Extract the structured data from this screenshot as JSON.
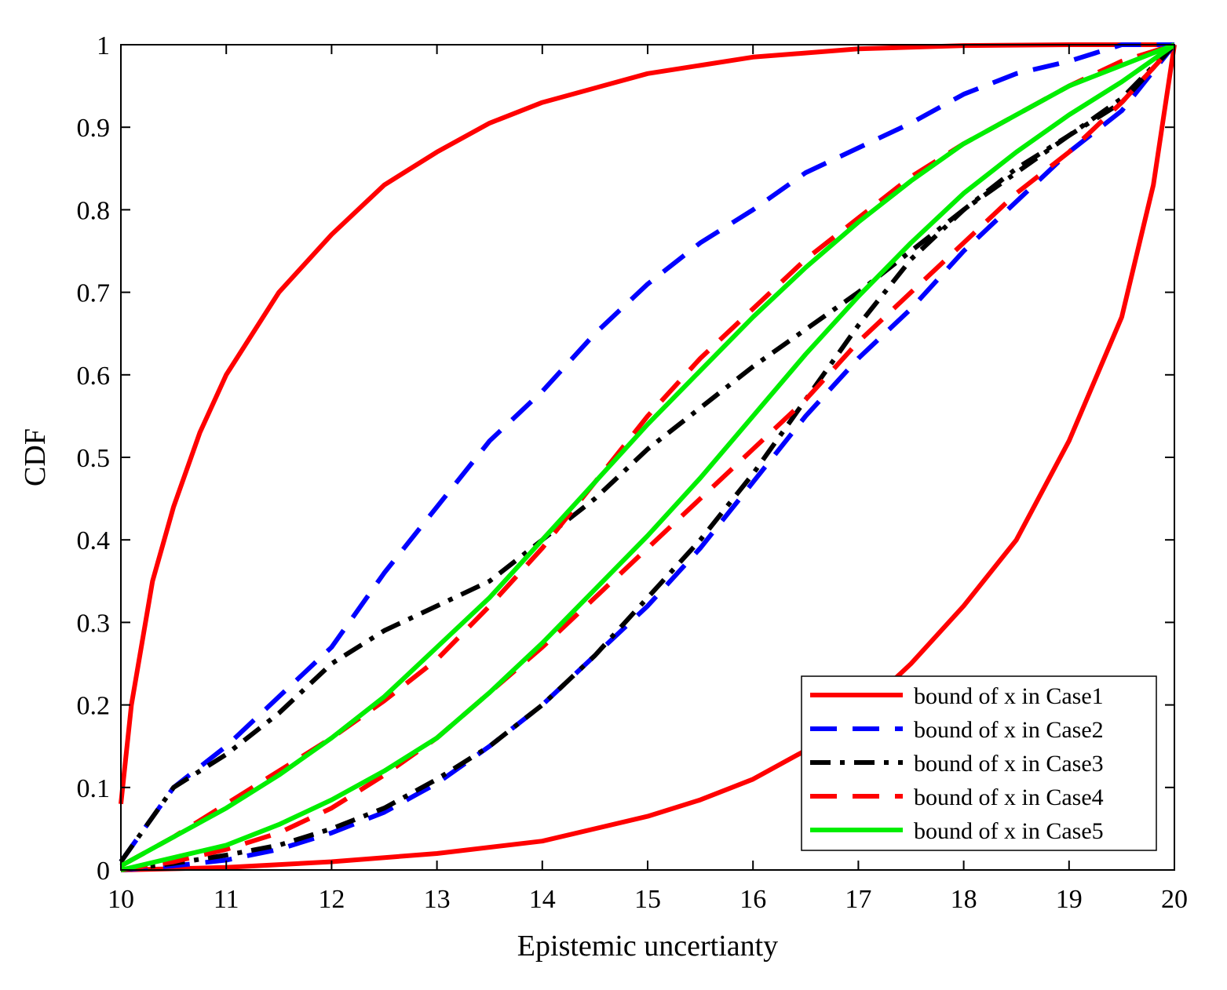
{
  "chart_data": {
    "type": "line",
    "title": "",
    "xlabel": "Epistemic uncertianty",
    "ylabel": "CDF",
    "xlim": [
      10,
      20
    ],
    "ylim": [
      0,
      1
    ],
    "xticks": [
      10,
      11,
      12,
      13,
      14,
      15,
      16,
      17,
      18,
      19,
      20
    ],
    "yticks": [
      0,
      0.1,
      0.2,
      0.3,
      0.4,
      0.5,
      0.6,
      0.7,
      0.8,
      0.9,
      1
    ],
    "ytick_labels": [
      "0",
      "0.1",
      "0.2",
      "0.3",
      "0.4",
      "0.5",
      "0.6",
      "0.7",
      "0.8",
      "0.9",
      "1"
    ],
    "grid": false,
    "legend_position": "bottom-right",
    "series": [
      {
        "name": "bound of x in Case1",
        "color": "#ff0000",
        "style": "solid",
        "curves": [
          {
            "x": [
              10,
              10.1,
              10.3,
              10.5,
              10.75,
              11,
              11.5,
              12,
              12.5,
              13,
              13.5,
              14,
              15,
              16,
              17,
              18,
              19,
              20
            ],
            "y": [
              0.08,
              0.2,
              0.35,
              0.44,
              0.53,
              0.6,
              0.7,
              0.77,
              0.83,
              0.87,
              0.905,
              0.93,
              0.965,
              0.985,
              0.995,
              0.999,
              1.0,
              1.0
            ]
          },
          {
            "x": [
              10,
              11,
              12,
              13,
              14,
              15,
              15.5,
              16,
              16.5,
              17,
              17.5,
              18,
              18.5,
              19,
              19.5,
              19.8,
              20
            ],
            "y": [
              0.0,
              0.003,
              0.01,
              0.02,
              0.035,
              0.065,
              0.085,
              0.11,
              0.145,
              0.19,
              0.25,
              0.32,
              0.4,
              0.52,
              0.67,
              0.83,
              1.0
            ]
          }
        ]
      },
      {
        "name": "bound of x in Case2",
        "color": "#0000ff",
        "style": "dashed",
        "curves": [
          {
            "x": [
              10,
              10.5,
              11,
              11.5,
              12,
              12.5,
              13,
              13.5,
              14,
              14.5,
              15,
              15.5,
              16,
              16.5,
              17,
              17.5,
              18,
              18.5,
              19,
              19.5,
              20
            ],
            "y": [
              0.01,
              0.1,
              0.15,
              0.21,
              0.27,
              0.36,
              0.44,
              0.52,
              0.58,
              0.65,
              0.71,
              0.76,
              0.8,
              0.845,
              0.875,
              0.905,
              0.94,
              0.965,
              0.98,
              1.0,
              1.0
            ]
          },
          {
            "x": [
              10,
              10.5,
              11,
              11.5,
              12,
              12.5,
              13,
              13.5,
              14,
              14.5,
              15,
              15.5,
              16,
              16.5,
              17,
              17.5,
              18,
              18.5,
              19,
              19.5,
              20
            ],
            "y": [
              0.0,
              0.005,
              0.012,
              0.025,
              0.045,
              0.07,
              0.105,
              0.15,
              0.2,
              0.26,
              0.32,
              0.39,
              0.47,
              0.55,
              0.62,
              0.68,
              0.75,
              0.81,
              0.87,
              0.92,
              1.0
            ]
          }
        ]
      },
      {
        "name": "bound of x in Case3",
        "color": "#000000",
        "style": "dashdot",
        "curves": [
          {
            "x": [
              10,
              10.5,
              11,
              11.5,
              12,
              12.5,
              13,
              13.5,
              14,
              14.5,
              15,
              15.5,
              16,
              16.5,
              17,
              17.5,
              18,
              18.5,
              19,
              19.5,
              20
            ],
            "y": [
              0.01,
              0.1,
              0.14,
              0.19,
              0.25,
              0.29,
              0.32,
              0.35,
              0.4,
              0.45,
              0.51,
              0.56,
              0.61,
              0.655,
              0.7,
              0.75,
              0.8,
              0.845,
              0.89,
              0.935,
              1.0
            ]
          },
          {
            "x": [
              10,
              10.5,
              11,
              11.5,
              12,
              12.5,
              13,
              13.5,
              14,
              14.5,
              15,
              15.5,
              16,
              16.5,
              17,
              17.5,
              18,
              18.5,
              19,
              19.5,
              20
            ],
            "y": [
              0.0,
              0.008,
              0.018,
              0.03,
              0.05,
              0.075,
              0.11,
              0.15,
              0.2,
              0.26,
              0.33,
              0.4,
              0.48,
              0.57,
              0.66,
              0.74,
              0.8,
              0.85,
              0.89,
              0.93,
              1.0
            ]
          }
        ]
      },
      {
        "name": "bound of x in Case4",
        "color": "#ff0000",
        "style": "dashed",
        "curves": [
          {
            "x": [
              10,
              10.5,
              11,
              11.5,
              12,
              12.5,
              13,
              13.5,
              14,
              14.5,
              15,
              15.5,
              16,
              16.5,
              17,
              17.5,
              18,
              18.5,
              19,
              19.5,
              20
            ],
            "y": [
              0.005,
              0.04,
              0.08,
              0.12,
              0.16,
              0.205,
              0.255,
              0.32,
              0.39,
              0.47,
              0.55,
              0.62,
              0.68,
              0.74,
              0.79,
              0.84,
              0.88,
              0.915,
              0.95,
              0.98,
              1.0
            ]
          },
          {
            "x": [
              10,
              10.5,
              11,
              11.5,
              12,
              12.5,
              13,
              13.5,
              14,
              14.5,
              15,
              15.5,
              16,
              16.5,
              17,
              17.5,
              18,
              18.5,
              19,
              19.5,
              20
            ],
            "y": [
              0.0,
              0.01,
              0.025,
              0.045,
              0.075,
              0.115,
              0.16,
              0.215,
              0.27,
              0.33,
              0.39,
              0.45,
              0.51,
              0.57,
              0.64,
              0.7,
              0.76,
              0.82,
              0.87,
              0.93,
              1.0
            ]
          }
        ]
      },
      {
        "name": "bound of x in Case5",
        "color": "#00ee00",
        "style": "solid",
        "curves": [
          {
            "x": [
              10,
              10.5,
              11,
              11.5,
              12,
              12.5,
              13,
              13.5,
              14,
              14.5,
              15,
              15.5,
              16,
              16.5,
              17,
              17.5,
              18,
              18.5,
              19,
              19.5,
              20
            ],
            "y": [
              0.005,
              0.04,
              0.075,
              0.115,
              0.16,
              0.21,
              0.27,
              0.33,
              0.4,
              0.47,
              0.54,
              0.605,
              0.67,
              0.73,
              0.785,
              0.835,
              0.88,
              0.915,
              0.95,
              0.975,
              1.0
            ]
          },
          {
            "x": [
              10,
              10.5,
              11,
              11.5,
              12,
              12.5,
              13,
              13.5,
              14,
              14.5,
              15,
              15.5,
              16,
              16.5,
              17,
              17.5,
              18,
              18.5,
              19,
              19.5,
              20
            ],
            "y": [
              0.0,
              0.015,
              0.03,
              0.055,
              0.085,
              0.12,
              0.16,
              0.215,
              0.275,
              0.34,
              0.405,
              0.475,
              0.55,
              0.625,
              0.695,
              0.76,
              0.82,
              0.87,
              0.915,
              0.955,
              1.0
            ]
          }
        ]
      }
    ]
  }
}
